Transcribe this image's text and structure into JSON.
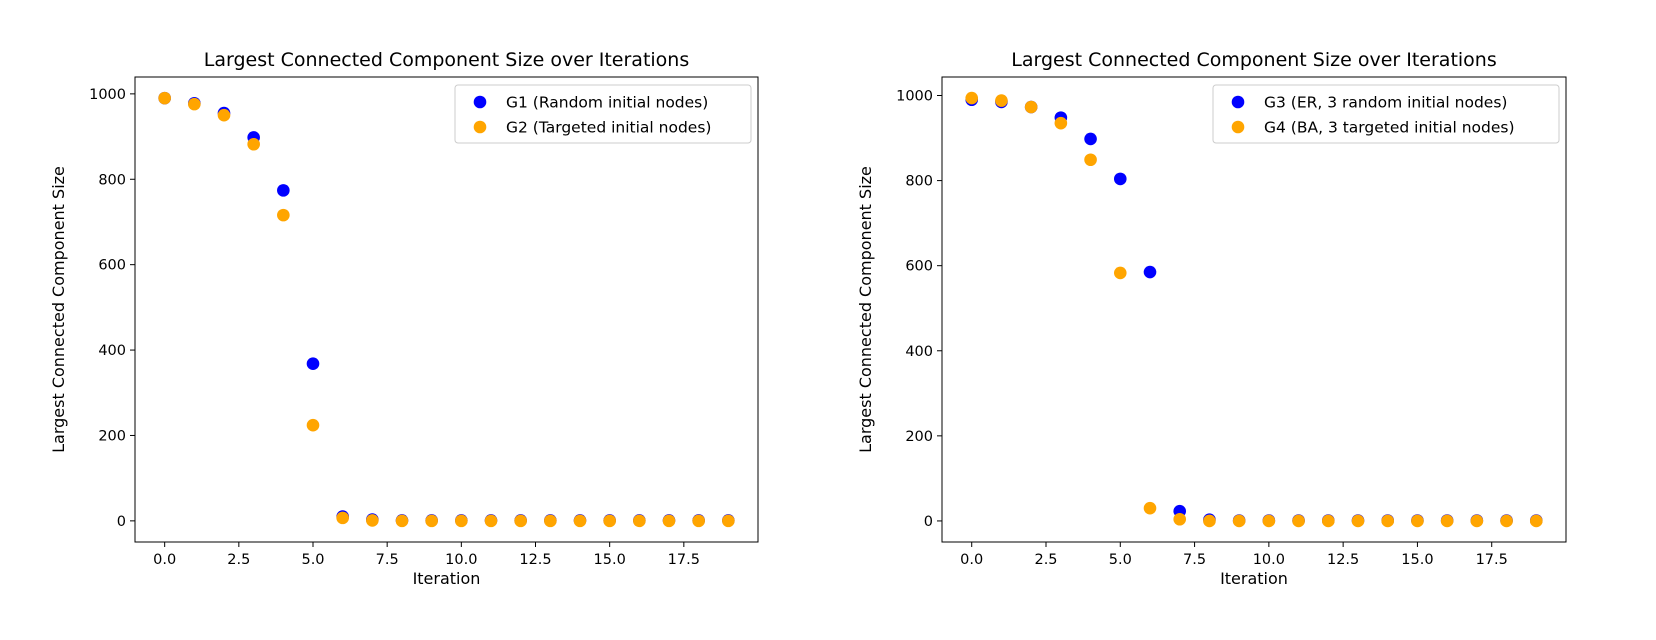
{
  "chart_data": [
    {
      "type": "scatter",
      "title": "Largest Connected Component Size over Iterations",
      "xlabel": "Iteration",
      "ylabel": "Largest Connected Component Size",
      "xlim": [
        -1,
        20
      ],
      "ylim": [
        -49.5,
        1039.5
      ],
      "xticks": [
        0,
        2.5,
        5,
        7.5,
        10,
        12.5,
        15,
        17.5
      ],
      "xtick_labels": [
        "0.0",
        "2.5",
        "5.0",
        "7.5",
        "10.0",
        "12.5",
        "15.0",
        "17.5"
      ],
      "yticks": [
        0,
        200,
        400,
        600,
        800,
        1000
      ],
      "ytick_labels": [
        "0",
        "200",
        "400",
        "600",
        "800",
        "1000"
      ],
      "legend_position": "upper right",
      "grid": false,
      "series": [
        {
          "name": "G1 (Random initial nodes)",
          "color": "#0000ff",
          "x": [
            0,
            1,
            2,
            3,
            4,
            5,
            6,
            7,
            8,
            9,
            10,
            11,
            12,
            13,
            14,
            15,
            16,
            17,
            18,
            19
          ],
          "y": [
            990,
            978,
            955,
            898,
            774,
            368,
            10,
            3,
            1,
            1,
            1,
            1,
            1,
            1,
            1,
            1,
            1,
            1,
            1,
            1
          ]
        },
        {
          "name": "G2 (Targeted initial nodes)",
          "color": "#ffa500",
          "x": [
            0,
            1,
            2,
            3,
            4,
            5,
            6,
            7,
            8,
            9,
            10,
            11,
            12,
            13,
            14,
            15,
            16,
            17,
            18,
            19
          ],
          "y": [
            990,
            976,
            950,
            882,
            716,
            224,
            7,
            1,
            0,
            0,
            0,
            0,
            0,
            0,
            0,
            0,
            0,
            0,
            0,
            0
          ]
        }
      ]
    },
    {
      "type": "scatter",
      "title": "Largest Connected Component Size over Iterations",
      "xlabel": "Iteration",
      "ylabel": "Largest Connected Component Size",
      "xlim": [
        -1,
        20
      ],
      "ylim": [
        -49.5,
        1043.5
      ],
      "xticks": [
        0,
        2.5,
        5,
        7.5,
        10,
        12.5,
        15,
        17.5
      ],
      "xtick_labels": [
        "0.0",
        "2.5",
        "5.0",
        "7.5",
        "10.0",
        "12.5",
        "15.0",
        "17.5"
      ],
      "yticks": [
        0,
        200,
        400,
        600,
        800,
        1000
      ],
      "ytick_labels": [
        "0",
        "200",
        "400",
        "600",
        "800",
        "1000"
      ],
      "legend_position": "upper right",
      "grid": false,
      "series": [
        {
          "name": "G3 (ER, 3 random initial nodes)",
          "color": "#0000ff",
          "x": [
            0,
            1,
            2,
            3,
            4,
            5,
            6,
            7,
            8,
            9,
            10,
            11,
            12,
            13,
            14,
            15,
            16,
            17,
            18,
            19
          ],
          "y": [
            990,
            985,
            973,
            948,
            898,
            804,
            585,
            23,
            3,
            1,
            1,
            1,
            1,
            1,
            1,
            1,
            1,
            1,
            1,
            1
          ]
        },
        {
          "name": "G4 (BA, 3 targeted initial nodes)",
          "color": "#ffa500",
          "x": [
            0,
            1,
            2,
            3,
            4,
            5,
            6,
            7,
            8,
            9,
            10,
            11,
            12,
            13,
            14,
            15,
            16,
            17,
            18,
            19
          ],
          "y": [
            994,
            988,
            973,
            935,
            849,
            583,
            30,
            4,
            0,
            0,
            0,
            0,
            0,
            0,
            0,
            0,
            0,
            0,
            0,
            0
          ]
        }
      ]
    }
  ]
}
